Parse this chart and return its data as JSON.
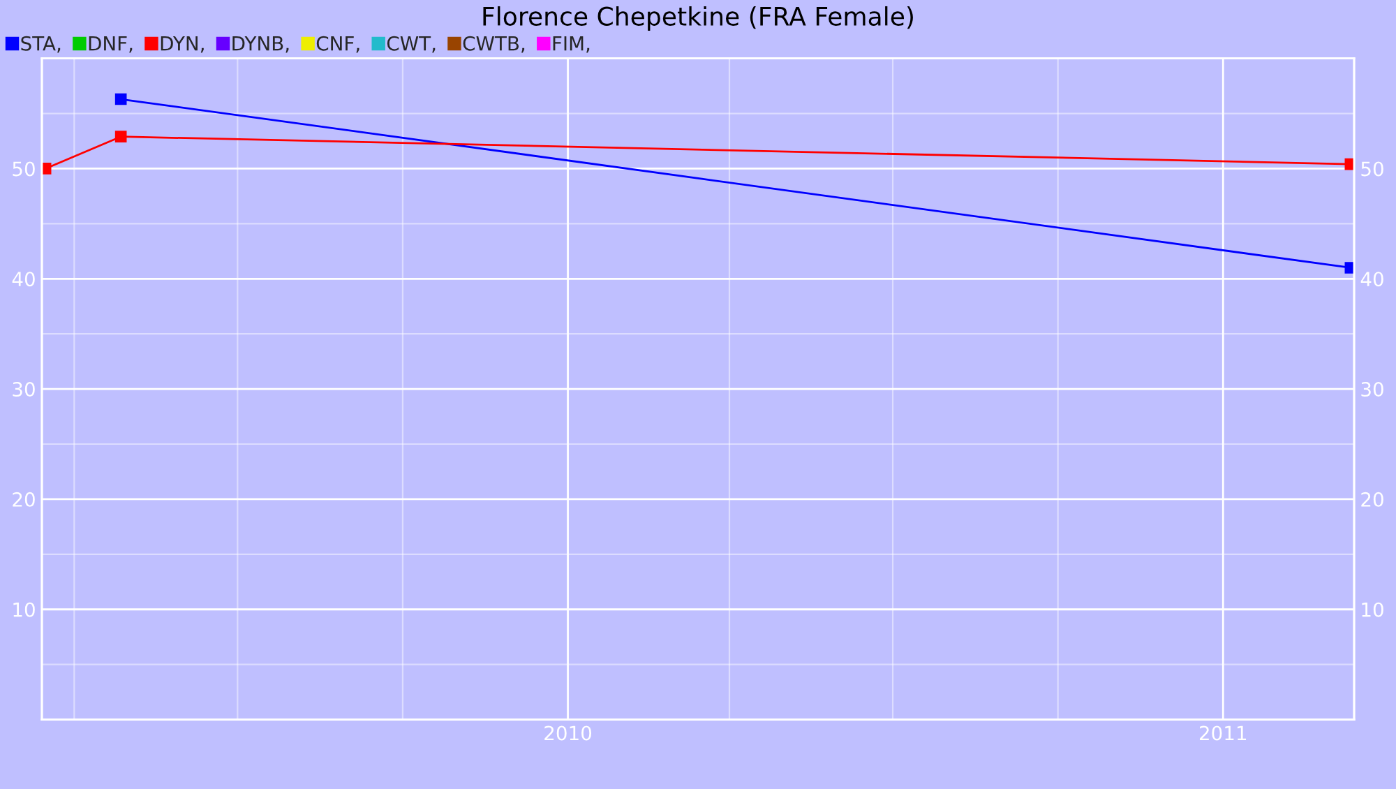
{
  "chart_data": {
    "type": "line",
    "title": "Florence Chepetkine (FRA Female)",
    "series": [
      {
        "name": "STA,",
        "color": "#0000ff",
        "x": [
          "2009-04-27",
          "2011-03-13"
        ],
        "values": [
          56.3,
          41.0
        ]
      },
      {
        "name": "DNF,",
        "color": "#00cc00"
      },
      {
        "name": "DYN,",
        "color": "#ff0000",
        "x": [
          "2009-03-16",
          "2009-04-27",
          "2011-03-13"
        ],
        "values": [
          50.0,
          52.9,
          50.4
        ]
      },
      {
        "name": "DYNB,",
        "color": "#6600ff"
      },
      {
        "name": "CNF,",
        "color": "#eeee00"
      },
      {
        "name": "CWT,",
        "color": "#22bbcc"
      },
      {
        "name": "CWTB,",
        "color": "#994400"
      },
      {
        "name": "FIM,",
        "color": "#ff00ff"
      }
    ],
    "xlim": [
      "2009-03-14",
      "2011-03-15"
    ],
    "xticks": [
      {
        "value": "2009-04-01",
        "label": null
      },
      {
        "value": "2009-07-01",
        "label": null
      },
      {
        "value": "2009-10-01",
        "label": null
      },
      {
        "value": "2010-01-01",
        "label": "2010"
      },
      {
        "value": "2010-04-01",
        "label": null
      },
      {
        "value": "2010-07-01",
        "label": null
      },
      {
        "value": "2010-10-01",
        "label": null
      },
      {
        "value": "2011-01-01",
        "label": "2011"
      }
    ],
    "ylim": [
      0,
      60
    ],
    "yticks": [
      {
        "value": 5,
        "label": null
      },
      10,
      {
        "value": 15,
        "label": null
      },
      20,
      {
        "value": 25,
        "label": null
      },
      30,
      {
        "value": 35,
        "label": null
      },
      40,
      {
        "value": 45,
        "label": null
      },
      50,
      {
        "value": 55,
        "label": null
      }
    ],
    "y2lim": [
      0,
      60
    ],
    "y2ticks": [
      10,
      20,
      30,
      40,
      50
    ],
    "grid": true,
    "legend": "top left",
    "marker": "square",
    "line_style": "solid"
  }
}
